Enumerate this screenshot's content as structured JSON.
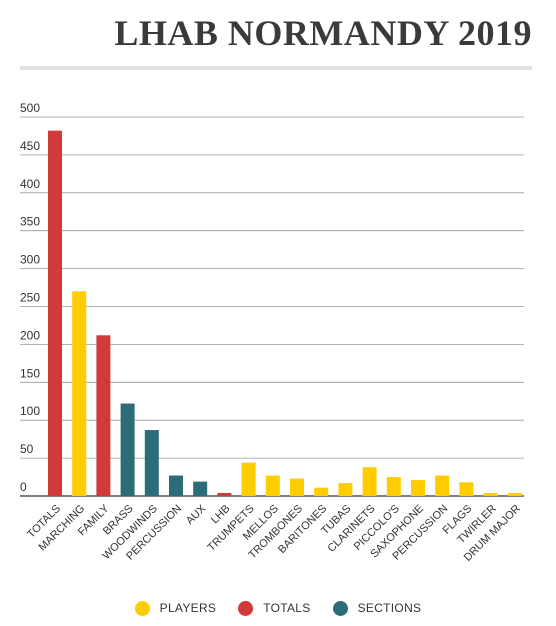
{
  "header": {
    "title": "LHAB NORMANDY 2019"
  },
  "colors": {
    "players": "#FFCC00",
    "totals": "#D03A3A",
    "sections": "#2C6C78",
    "grid": "#999999",
    "axis": "#333333"
  },
  "legend": [
    {
      "name": "PLAYERS",
      "color": "#FFCC00"
    },
    {
      "name": "TOTALS",
      "color": "#D03A3A"
    },
    {
      "name": "SECTIONS",
      "color": "#2C6C78"
    }
  ],
  "chart_data": {
    "type": "bar",
    "title": "LHAB NORMANDY 2019",
    "xlabel": "",
    "ylabel": "",
    "ylim": [
      0,
      500
    ],
    "yticks": [
      0,
      50,
      100,
      150,
      200,
      250,
      300,
      350,
      400,
      450,
      500
    ],
    "grid": true,
    "legend_position": "bottom",
    "categories": [
      "TOTALS",
      "MARCHING",
      "FAMILY",
      "BRASS",
      "WOODWINDS",
      "PERCUSSION",
      "AUX",
      "LHB",
      "TRUMPETS",
      "MELLOS",
      "TROMBONES",
      "BARITONES",
      "TUBAS",
      "CLARINETS",
      "PICCOLO'S",
      "SAXOPHONE",
      "PERCUSSION",
      "FLAGS",
      "TWIRLER",
      "DRUM MAJOR"
    ],
    "values": [
      482,
      270,
      212,
      122,
      87,
      27,
      19,
      4,
      44,
      27,
      23,
      11,
      17,
      38,
      25,
      21,
      27,
      18,
      4,
      4
    ],
    "groups": [
      "TOTALS",
      "PLAYERS",
      "TOTALS",
      "SECTIONS",
      "SECTIONS",
      "SECTIONS",
      "SECTIONS",
      "TOTALS",
      "PLAYERS",
      "PLAYERS",
      "PLAYERS",
      "PLAYERS",
      "PLAYERS",
      "PLAYERS",
      "PLAYERS",
      "PLAYERS",
      "PLAYERS",
      "PLAYERS",
      "PLAYERS",
      "PLAYERS"
    ]
  }
}
